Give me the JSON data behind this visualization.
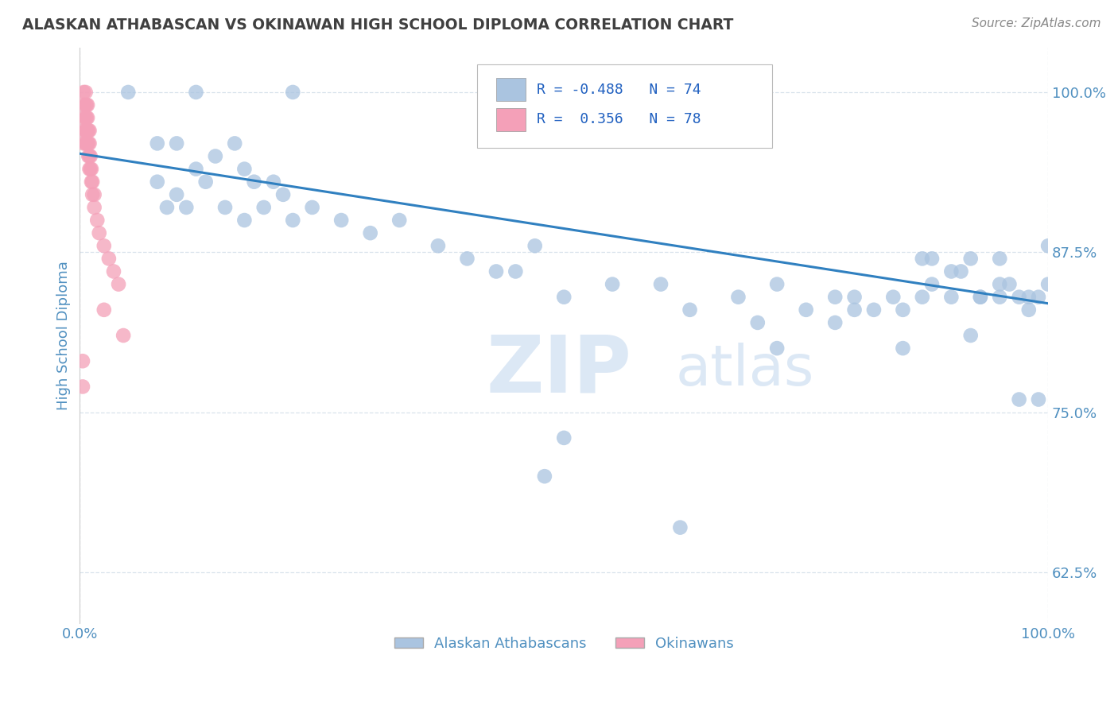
{
  "title": "ALASKAN ATHABASCAN VS OKINAWAN HIGH SCHOOL DIPLOMA CORRELATION CHART",
  "source": "Source: ZipAtlas.com",
  "ylabel": "High School Diploma",
  "legend_label1": "Alaskan Athabascans",
  "legend_label2": "Okinawans",
  "blue_color": "#aac4e0",
  "pink_color": "#f4a0b8",
  "line_color": "#3080c0",
  "title_color": "#404040",
  "axis_label_color": "#5090c0",
  "tick_color": "#5090c0",
  "legend_text_color": "#2060c0",
  "watermark_color": "#dce8f5",
  "background_color": "#ffffff",
  "grid_color": "#d0dce8",
  "xlim": [
    0.0,
    1.0
  ],
  "ylim": [
    0.585,
    1.035
  ],
  "yticks": [
    0.625,
    0.75,
    0.875,
    1.0
  ],
  "ytick_labels": [
    "62.5%",
    "75.0%",
    "87.5%",
    "100.0%"
  ],
  "trend_x_start": 0.0,
  "trend_x_end": 1.0,
  "trend_y_start": 0.952,
  "trend_y_end": 0.835,
  "blue_scatter_x": [
    0.05,
    0.12,
    0.22,
    0.08,
    0.1,
    0.12,
    0.14,
    0.16,
    0.17,
    0.18,
    0.2,
    0.08,
    0.09,
    0.1,
    0.11,
    0.13,
    0.15,
    0.17,
    0.19,
    0.21,
    0.22,
    0.24,
    0.27,
    0.3,
    0.33,
    0.37,
    0.4,
    0.45,
    0.5,
    0.47,
    0.43,
    0.55,
    0.6,
    0.63,
    0.5,
    0.68,
    0.72,
    0.75,
    0.78,
    0.8,
    0.8,
    0.82,
    0.84,
    0.85,
    0.87,
    0.87,
    0.88,
    0.9,
    0.91,
    0.92,
    0.93,
    0.93,
    0.95,
    0.95,
    0.96,
    0.97,
    0.98,
    0.99,
    1.0,
    0.7,
    0.72,
    0.78,
    0.85,
    0.88,
    0.9,
    0.92,
    0.95,
    0.98,
    1.0,
    0.99,
    0.97,
    0.62,
    0.48
  ],
  "blue_scatter_y": [
    1.0,
    1.0,
    1.0,
    0.96,
    0.96,
    0.94,
    0.95,
    0.96,
    0.94,
    0.93,
    0.93,
    0.93,
    0.91,
    0.92,
    0.91,
    0.93,
    0.91,
    0.9,
    0.91,
    0.92,
    0.9,
    0.91,
    0.9,
    0.89,
    0.9,
    0.88,
    0.87,
    0.86,
    0.84,
    0.88,
    0.86,
    0.85,
    0.85,
    0.83,
    0.73,
    0.84,
    0.85,
    0.83,
    0.82,
    0.84,
    0.83,
    0.83,
    0.84,
    0.83,
    0.87,
    0.84,
    0.87,
    0.86,
    0.86,
    0.87,
    0.84,
    0.84,
    0.85,
    0.87,
    0.85,
    0.84,
    0.83,
    0.84,
    0.85,
    0.82,
    0.8,
    0.84,
    0.8,
    0.85,
    0.84,
    0.81,
    0.84,
    0.84,
    0.88,
    0.76,
    0.76,
    0.66,
    0.7
  ],
  "pink_scatter_x": [
    0.004,
    0.004,
    0.004,
    0.004,
    0.004,
    0.006,
    0.006,
    0.006,
    0.006,
    0.006,
    0.007,
    0.007,
    0.007,
    0.007,
    0.008,
    0.008,
    0.008,
    0.008,
    0.009,
    0.009,
    0.009,
    0.01,
    0.01,
    0.01,
    0.01,
    0.011,
    0.011,
    0.012,
    0.012,
    0.013,
    0.013,
    0.015,
    0.015,
    0.018,
    0.02,
    0.025,
    0.03,
    0.035,
    0.04,
    0.025,
    0.045,
    0.003,
    0.003
  ],
  "pink_scatter_y": [
    1.0,
    0.99,
    0.98,
    0.97,
    0.96,
    1.0,
    0.99,
    0.98,
    0.97,
    0.96,
    0.99,
    0.98,
    0.97,
    0.96,
    0.99,
    0.98,
    0.97,
    0.96,
    0.97,
    0.96,
    0.95,
    0.97,
    0.96,
    0.95,
    0.94,
    0.95,
    0.94,
    0.94,
    0.93,
    0.93,
    0.92,
    0.92,
    0.91,
    0.9,
    0.89,
    0.88,
    0.87,
    0.86,
    0.85,
    0.83,
    0.81,
    0.79,
    0.77
  ]
}
